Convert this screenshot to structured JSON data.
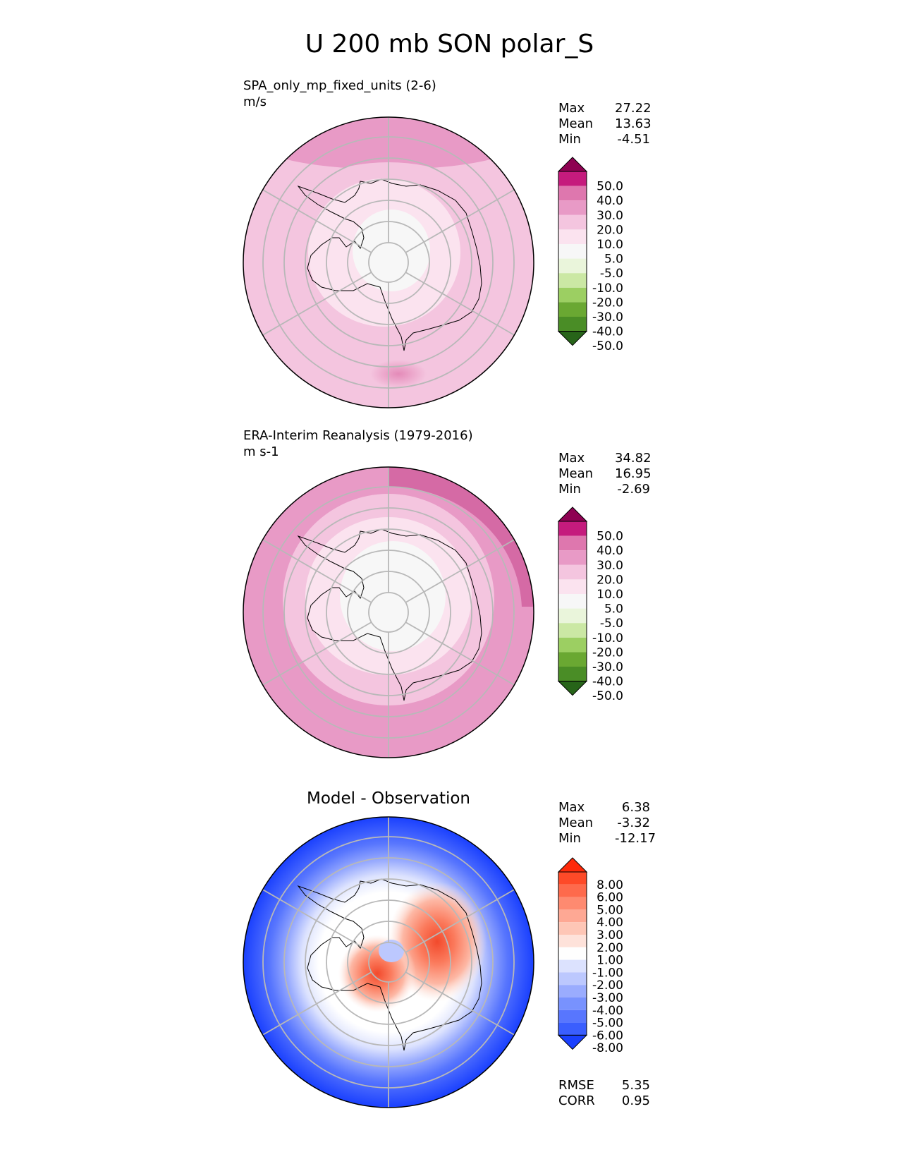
{
  "title": "U 200 mb SON polar_S",
  "panels": [
    {
      "label_line1": "SPA_only_mp_fixed_units (2-6)",
      "label_line2": "m/s",
      "stats": [
        {
          "label": "Max",
          "value": "27.22"
        },
        {
          "label": "Mean",
          "value": "13.63"
        },
        {
          "label": "Min",
          "value": "-4.51"
        }
      ]
    },
    {
      "label_line1": "ERA-Interim Reanalysis (1979-2016)",
      "label_line2": "m s-1",
      "stats": [
        {
          "label": "Max",
          "value": "34.82"
        },
        {
          "label": "Mean",
          "value": "16.95"
        },
        {
          "label": "Min",
          "value": "-2.69"
        }
      ]
    },
    {
      "title": "Model - Observation",
      "stats": [
        {
          "label": "Max",
          "value": "6.38"
        },
        {
          "label": "Mean",
          "value": "-3.32"
        },
        {
          "label": "Min",
          "value": "-12.17"
        }
      ],
      "metrics": [
        {
          "label": "RMSE",
          "value": "5.35"
        },
        {
          "label": "CORR",
          "value": "0.95"
        }
      ]
    }
  ],
  "colorbars": {
    "field": {
      "ticks": [
        "50.0",
        "40.0",
        "30.0",
        "20.0",
        "10.0",
        "5.0",
        "-5.0",
        "-10.0",
        "-20.0",
        "-30.0",
        "-40.0",
        "-50.0"
      ],
      "colors": [
        "#8e0152",
        "#c51b7d",
        "#de77ae",
        "#e89ac6",
        "#f4c5df",
        "#fbe3ef",
        "#f7f7f7",
        "#eaf5db",
        "#cbe8a4",
        "#9ccf62",
        "#6aa832",
        "#4a8d26",
        "#276419"
      ]
    },
    "diff": {
      "ticks": [
        "8.00",
        "6.00",
        "5.00",
        "4.00",
        "3.00",
        "2.00",
        "1.00",
        "-1.00",
        "-2.00",
        "-3.00",
        "-4.00",
        "-5.00",
        "-6.00",
        "-8.00"
      ],
      "colors": [
        "#fe2a0a",
        "#fe4a28",
        "#fe6a4c",
        "#fe8a70",
        "#fea894",
        "#fec6b6",
        "#fee2da",
        "#fefefe",
        "#dce2fe",
        "#bcc8fe",
        "#9aacfe",
        "#7892fe",
        "#5876fe",
        "#3a5efe",
        "#1a40fe"
      ]
    }
  },
  "chart_data": [
    {
      "type": "heatmap",
      "projection": "south-polar-stereographic",
      "variable": "U 200 mb",
      "season": "SON",
      "title": "SPA_only_mp_fixed_units (2-6)",
      "units": "m/s",
      "max": 27.22,
      "mean": 13.63,
      "min": -4.51,
      "levels": [
        -50,
        -40,
        -30,
        -20,
        -10,
        -5,
        5,
        10,
        20,
        30,
        40,
        50
      ]
    },
    {
      "type": "heatmap",
      "projection": "south-polar-stereographic",
      "variable": "U 200 mb",
      "season": "SON",
      "title": "ERA-Interim Reanalysis (1979-2016)",
      "units": "m s-1",
      "max": 34.82,
      "mean": 16.95,
      "min": -2.69,
      "levels": [
        -50,
        -40,
        -30,
        -20,
        -10,
        -5,
        5,
        10,
        20,
        30,
        40,
        50
      ]
    },
    {
      "type": "heatmap",
      "projection": "south-polar-stereographic",
      "title": "Model - Observation",
      "max": 6.38,
      "mean": -3.32,
      "min": -12.17,
      "rmse": 5.35,
      "corr": 0.95,
      "levels": [
        -8,
        -6,
        -5,
        -4,
        -3,
        -2,
        -1,
        1,
        2,
        3,
        4,
        5,
        6,
        8
      ]
    }
  ]
}
